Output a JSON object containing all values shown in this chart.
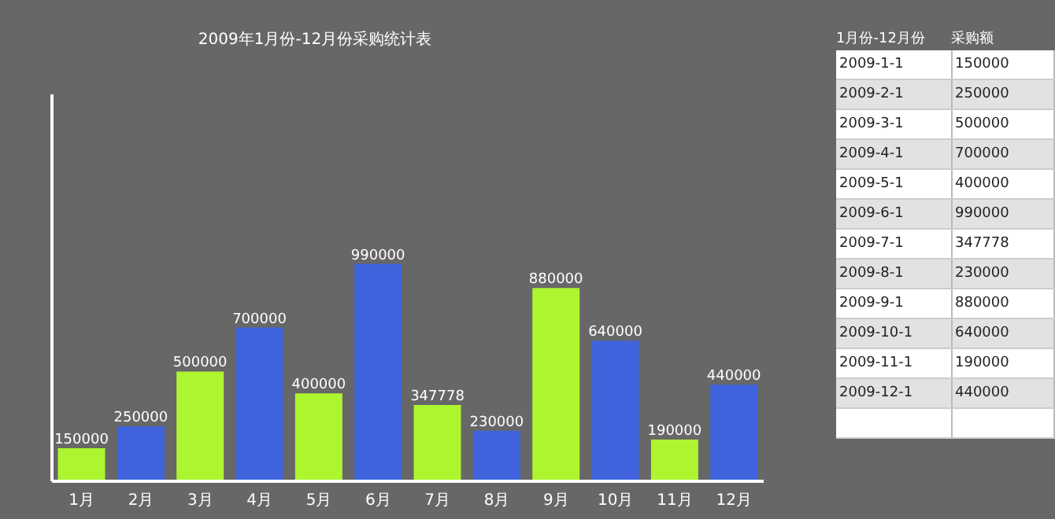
{
  "chart_data": [
    {
      "type": "bar",
      "title": "2009年1月份-12月份采购统计表",
      "categories": [
        "1月",
        "2月",
        "3月",
        "4月",
        "5月",
        "6月",
        "7月",
        "8月",
        "9月",
        "10月",
        "11月",
        "12月"
      ],
      "values": [
        150000,
        250000,
        500000,
        700000,
        400000,
        990000,
        347778,
        230000,
        880000,
        640000,
        190000,
        440000
      ],
      "colors": [
        "#adf52f",
        "#3f64dd",
        "#adf52f",
        "#3f64dd",
        "#adf52f",
        "#3f64dd",
        "#adf52f",
        "#3f64dd",
        "#adf52f",
        "#3f64dd",
        "#adf52f",
        "#3f64dd"
      ],
      "data_labels": true,
      "tick_labels": "x"
    },
    {
      "type": "other",
      "xlabel": "1月份-12月份",
      "ylabel": "采购额",
      "categories": [
        "2009-1-1",
        "2009-2-1",
        "2009-3-1",
        "2009-4-1",
        "2009-5-1",
        "2009-6-1",
        "2009-7-1",
        "2009-8-1",
        "2009-9-1",
        "2009-10-1",
        "2009-11-1",
        "2009-12-1"
      ],
      "values": [
        150000,
        250000,
        500000,
        700000,
        400000,
        990000,
        347778,
        230000,
        880000,
        640000,
        190000,
        440000
      ],
      "data_labels": true
    }
  ]
}
